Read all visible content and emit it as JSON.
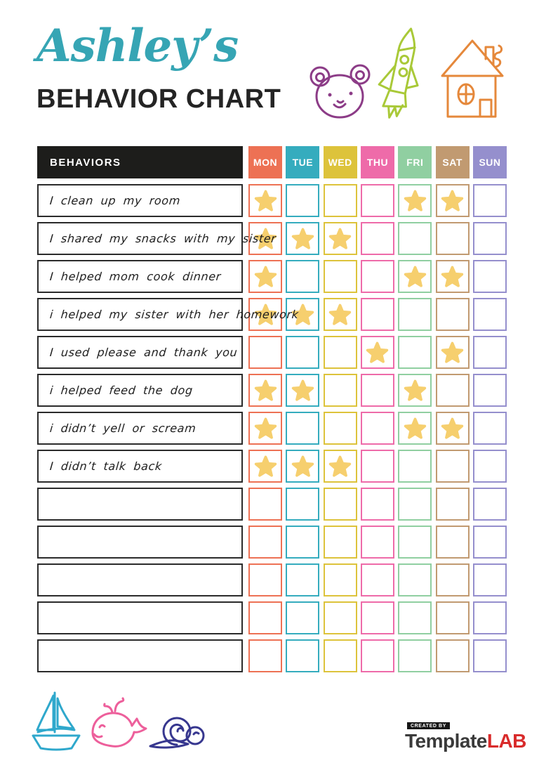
{
  "header": {
    "title_script": "Ashley’s",
    "title_main": "BEHAVIOR CHART"
  },
  "top_icons": [
    "bear-icon",
    "rocket-icon",
    "house-icon"
  ],
  "table": {
    "behaviors_header": "BEHAVIORS",
    "days": [
      {
        "label": "MON",
        "color": "#ed7154"
      },
      {
        "label": "TUE",
        "color": "#35acbe"
      },
      {
        "label": "WED",
        "color": "#ddc33b"
      },
      {
        "label": "THU",
        "color": "#ee6ba9"
      },
      {
        "label": "FRI",
        "color": "#90cfa1"
      },
      {
        "label": "SAT",
        "color": "#c19a71"
      },
      {
        "label": "SUN",
        "color": "#958fcd"
      }
    ],
    "star_icon": "star-icon",
    "rows": [
      {
        "behavior": "I clean up my room",
        "stars": [
          1,
          0,
          0,
          0,
          1,
          1,
          0
        ]
      },
      {
        "behavior": "I shared my snacks with my sister",
        "stars": [
          1,
          1,
          1,
          0,
          0,
          0,
          0
        ]
      },
      {
        "behavior": "I helped mom cook dinner",
        "stars": [
          1,
          0,
          0,
          0,
          1,
          1,
          0
        ]
      },
      {
        "behavior": "i helped my sister with her homework",
        "stars": [
          1,
          1,
          1,
          0,
          0,
          0,
          0
        ]
      },
      {
        "behavior": "I used please and thank you",
        "stars": [
          0,
          0,
          0,
          1,
          0,
          1,
          0
        ]
      },
      {
        "behavior": "i helped feed the dog",
        "stars": [
          1,
          1,
          0,
          0,
          1,
          0,
          0
        ]
      },
      {
        "behavior": "i didn’t yell or scream",
        "stars": [
          1,
          0,
          0,
          0,
          1,
          1,
          0
        ]
      },
      {
        "behavior": "I didn’t talk back",
        "stars": [
          1,
          1,
          1,
          0,
          0,
          0,
          0
        ]
      },
      {
        "behavior": "",
        "stars": [
          0,
          0,
          0,
          0,
          0,
          0,
          0
        ]
      },
      {
        "behavior": "",
        "stars": [
          0,
          0,
          0,
          0,
          0,
          0,
          0
        ]
      },
      {
        "behavior": "",
        "stars": [
          0,
          0,
          0,
          0,
          0,
          0,
          0
        ]
      },
      {
        "behavior": "",
        "stars": [
          0,
          0,
          0,
          0,
          0,
          0,
          0
        ]
      },
      {
        "behavior": "",
        "stars": [
          0,
          0,
          0,
          0,
          0,
          0,
          0
        ]
      }
    ]
  },
  "bottom_icons": [
    "sailboat-icon",
    "whale-icon",
    "snail-icon"
  ],
  "footer": {
    "created_by": "CREATED BY",
    "brand_primary": "Template",
    "brand_accent": "LAB"
  },
  "colors": {
    "accent_title": "#36a5b4",
    "header_bg": "#1d1d1b",
    "star": "#f6cf6e",
    "logo_red": "#d92b2b",
    "bear": "#8c3c87",
    "rocket": "#a9c938",
    "house": "#e5883b",
    "boat": "#2fa8cc",
    "whale": "#ed5f9b",
    "snail": "#37378f"
  }
}
